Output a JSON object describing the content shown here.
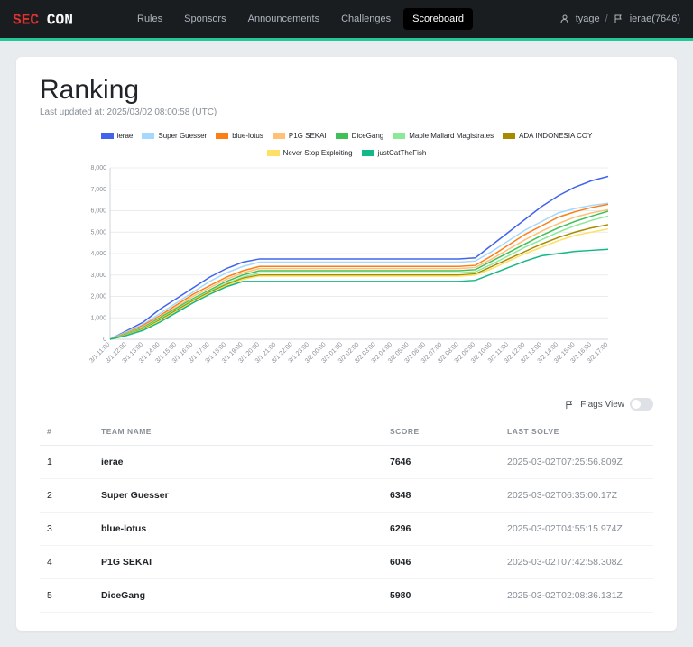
{
  "nav": {
    "logo_text": "SECCON",
    "links": [
      {
        "label": "Rules",
        "active": false
      },
      {
        "label": "Sponsors",
        "active": false
      },
      {
        "label": "Announcements",
        "active": false
      },
      {
        "label": "Challenges",
        "active": false
      },
      {
        "label": "Scoreboard",
        "active": true
      }
    ],
    "user": "tyage",
    "team": "ierae(7646)"
  },
  "page": {
    "title": "Ranking",
    "subtitle": "Last updated at: 2025/03/02 08:00:58 (UTC)"
  },
  "chart": {
    "type": "line",
    "ylim": [
      0,
      8000
    ],
    "ytick_step": 1000,
    "yticks": [
      "0",
      "1,000",
      "2,000",
      "3,000",
      "4,000",
      "5,000",
      "6,000",
      "7,000",
      "8,000"
    ],
    "xlabels": [
      "3/1 11:00",
      "3/1 12:00",
      "3/1 13:00",
      "3/1 14:00",
      "3/1 15:00",
      "3/1 16:00",
      "3/1 17:00",
      "3/1 18:00",
      "3/1 19:00",
      "3/1 20:00",
      "3/1 21:00",
      "3/1 22:00",
      "3/1 23:00",
      "3/2 00:00",
      "3/2 01:00",
      "3/2 02:00",
      "3/2 03:00",
      "3/2 04:00",
      "3/2 05:00",
      "3/2 06:00",
      "3/2 07:00",
      "3/2 08:00",
      "3/2 09:00",
      "3/2 10:00",
      "3/2 11:00",
      "3/2 12:00",
      "3/2 13:00",
      "3/2 14:00",
      "3/2 15:00",
      "3/2 16:00",
      "3/2 17:00"
    ],
    "background_color": "#ffffff",
    "grid_color": "#e9ecef",
    "line_width": 1.5,
    "series": [
      {
        "name": "ierae",
        "color": "#4263eb",
        "data": [
          0,
          400,
          800,
          1400,
          1900,
          2400,
          2900,
          3300,
          3600,
          3750,
          3750,
          3750,
          3750,
          3750,
          3750,
          3750,
          3750,
          3750,
          3750,
          3750,
          3750,
          3750,
          3800,
          4400,
          5000,
          5600,
          6200,
          6700,
          7100,
          7400,
          7600
        ]
      },
      {
        "name": "Super Guesser",
        "color": "#a5d8ff",
        "data": [
          0,
          350,
          700,
          1200,
          1700,
          2200,
          2700,
          3100,
          3400,
          3600,
          3600,
          3600,
          3600,
          3600,
          3600,
          3600,
          3600,
          3600,
          3600,
          3600,
          3600,
          3600,
          3650,
          4100,
          4600,
          5100,
          5500,
          5900,
          6100,
          6250,
          6350
        ]
      },
      {
        "name": "blue-lotus",
        "color": "#fd7e14",
        "data": [
          0,
          300,
          650,
          1100,
          1600,
          2100,
          2500,
          2900,
          3200,
          3400,
          3400,
          3400,
          3400,
          3400,
          3400,
          3400,
          3400,
          3400,
          3400,
          3400,
          3400,
          3400,
          3450,
          3900,
          4400,
          4900,
          5300,
          5700,
          5950,
          6150,
          6300
        ]
      },
      {
        "name": "P1G SEKAI",
        "color": "#ffc078",
        "data": [
          0,
          280,
          600,
          1050,
          1500,
          2000,
          2400,
          2800,
          3100,
          3300,
          3300,
          3300,
          3300,
          3300,
          3300,
          3300,
          3300,
          3300,
          3300,
          3300,
          3300,
          3300,
          3350,
          3750,
          4200,
          4650,
          5050,
          5400,
          5700,
          5900,
          6050
        ]
      },
      {
        "name": "DiceGang",
        "color": "#40c057",
        "data": [
          0,
          260,
          550,
          1000,
          1450,
          1900,
          2300,
          2700,
          3000,
          3200,
          3200,
          3200,
          3200,
          3200,
          3200,
          3200,
          3200,
          3200,
          3200,
          3200,
          3200,
          3200,
          3250,
          3650,
          4050,
          4450,
          4850,
          5200,
          5500,
          5750,
          5980
        ]
      },
      {
        "name": "Maple Mallard Magistrates",
        "color": "#8ce99a",
        "data": [
          0,
          240,
          520,
          950,
          1400,
          1850,
          2250,
          2600,
          2900,
          3100,
          3100,
          3100,
          3100,
          3100,
          3100,
          3100,
          3100,
          3100,
          3100,
          3100,
          3100,
          3100,
          3150,
          3500,
          3900,
          4300,
          4650,
          5000,
          5300,
          5550,
          5750
        ]
      },
      {
        "name": "ADA INDONESIA COY",
        "color": "#a68a00",
        "data": [
          0,
          220,
          480,
          900,
          1350,
          1800,
          2200,
          2550,
          2850,
          3000,
          3000,
          3000,
          3000,
          3000,
          3000,
          3000,
          3000,
          3000,
          3000,
          3000,
          3000,
          3000,
          3050,
          3400,
          3750,
          4100,
          4450,
          4750,
          5000,
          5200,
          5350
        ]
      },
      {
        "name": "Never Stop Exploiting",
        "color": "#ffe066",
        "data": [
          0,
          200,
          450,
          850,
          1300,
          1750,
          2150,
          2500,
          2800,
          2950,
          2950,
          2950,
          2950,
          2950,
          2950,
          2950,
          2950,
          2950,
          2950,
          2950,
          2950,
          2950,
          3000,
          3300,
          3650,
          4000,
          4300,
          4600,
          4850,
          5000,
          5150
        ]
      },
      {
        "name": "justCatTheFish",
        "color": "#12b886",
        "data": [
          0,
          180,
          420,
          800,
          1250,
          1700,
          2100,
          2450,
          2700,
          2700,
          2700,
          2700,
          2700,
          2700,
          2700,
          2700,
          2700,
          2700,
          2700,
          2700,
          2700,
          2700,
          2750,
          3050,
          3350,
          3650,
          3900,
          4000,
          4100,
          4150,
          4200
        ]
      }
    ]
  },
  "flags_view": {
    "label": "Flags View"
  },
  "table": {
    "columns": [
      "#",
      "TEAM NAME",
      "SCORE",
      "LAST SOLVE"
    ],
    "rows": [
      {
        "rank": "1",
        "team": "ierae",
        "score": "7646",
        "last": "2025-03-02T07:25:56.809Z"
      },
      {
        "rank": "2",
        "team": "Super Guesser",
        "score": "6348",
        "last": "2025-03-02T06:35:00.17Z"
      },
      {
        "rank": "3",
        "team": "blue-lotus",
        "score": "6296",
        "last": "2025-03-02T04:55:15.974Z"
      },
      {
        "rank": "4",
        "team": "P1G SEKAI",
        "score": "6046",
        "last": "2025-03-02T07:42:58.308Z"
      },
      {
        "rank": "5",
        "team": "DiceGang",
        "score": "5980",
        "last": "2025-03-02T02:08:36.131Z"
      }
    ]
  }
}
